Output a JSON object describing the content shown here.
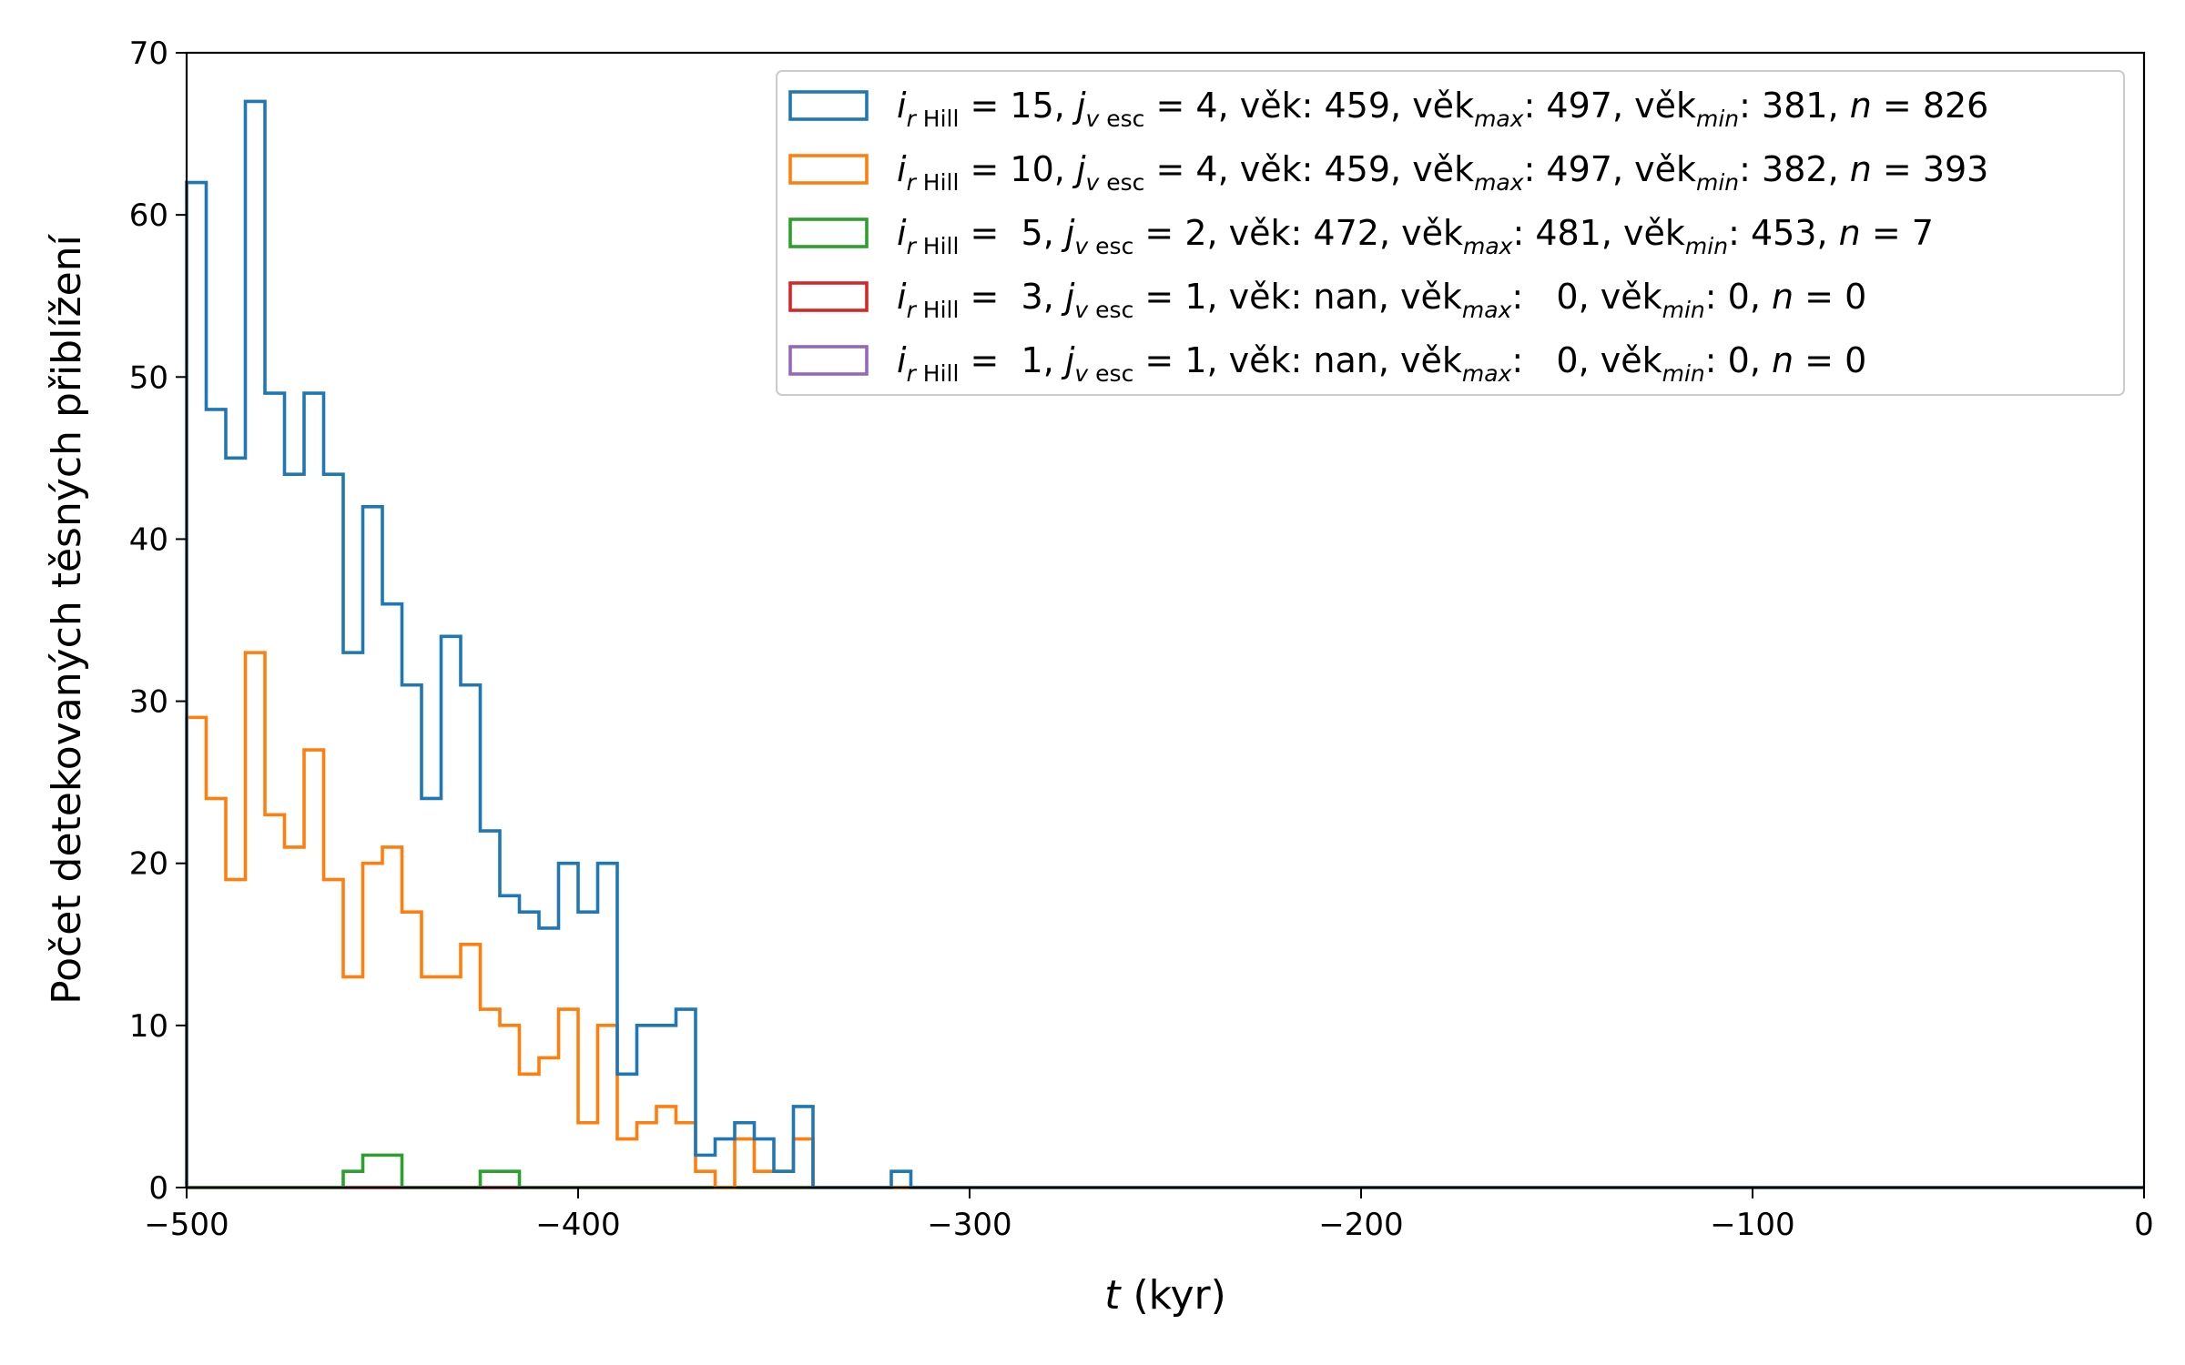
{
  "chart_data": {
    "type": "histogram",
    "xlabel_var": "t",
    "xlabel_unit": " (kyr)",
    "ylabel": "Počet detekovaných těsných přiblížení",
    "xlim": [
      -500,
      0
    ],
    "ylim": [
      0,
      70
    ],
    "xticks": [
      -500,
      -400,
      -300,
      -200,
      -100,
      0
    ],
    "xtick_labels": [
      "−500",
      "−400",
      "−300",
      "−200",
      "−100",
      "0"
    ],
    "yticks": [
      0,
      10,
      20,
      30,
      40,
      50,
      60,
      70
    ],
    "ytick_labels": [
      "0",
      "10",
      "20",
      "30",
      "40",
      "50",
      "60",
      "70"
    ],
    "bin_width": 5,
    "bin_start": -500,
    "legend_position": "upper-right",
    "series": [
      {
        "name": "15, 4, 459, 497, 381, 826",
        "color": "#1f77b4",
        "legend": {
          "i": "15",
          "j": "4",
          "age": "459",
          "age_max": "497",
          "age_min": "381",
          "n": "826"
        },
        "values": [
          62,
          48,
          45,
          67,
          49,
          44,
          49,
          44,
          33,
          42,
          36,
          31,
          24,
          34,
          31,
          22,
          18,
          17,
          16,
          20,
          17,
          20,
          7,
          10,
          10,
          11,
          2,
          3,
          4,
          3,
          1,
          5,
          0,
          0,
          0,
          0,
          1,
          0
        ]
      },
      {
        "name": "10, 4, 459, 497, 382, 393",
        "color": "#ff7f0e",
        "legend": {
          "i": "10",
          "j": "4",
          "age": "459",
          "age_max": "497",
          "age_min": "382",
          "n": "393"
        },
        "values": [
          29,
          24,
          19,
          33,
          23,
          21,
          27,
          19,
          13,
          20,
          21,
          17,
          13,
          13,
          15,
          11,
          10,
          7,
          8,
          11,
          4,
          10,
          3,
          4,
          5,
          4,
          1,
          0,
          3,
          1,
          1,
          3,
          0,
          0,
          0,
          0,
          0,
          0
        ]
      },
      {
        "name": "5, 2, 472, 481, 453, 7",
        "color": "#2ca02c",
        "legend": {
          "i": " 5",
          "j": "2",
          "age": "472",
          "age_max": "481",
          "age_min": "453",
          "n": "7"
        },
        "values": [
          0,
          0,
          0,
          0,
          0,
          0,
          0,
          0,
          1,
          2,
          2,
          0,
          0,
          0,
          0,
          1,
          1,
          0
        ]
      },
      {
        "name": "3, 1, nan, 0, 0, 0",
        "color": "#d62728",
        "legend": {
          "i": " 3",
          "j": "1",
          "age": "nan",
          "age_max": "  0",
          "age_min": "0",
          "n": "0"
        },
        "values": []
      },
      {
        "name": "1, 1, nan, 0, 0, 0",
        "color": "#9467bd",
        "legend": {
          "i": " 1",
          "j": "1",
          "age": "nan",
          "age_max": "  0",
          "age_min": "0",
          "n": "0"
        },
        "values": []
      }
    ]
  },
  "legend_text": {
    "i_sym": "i",
    "r_sub": "r",
    "hill_sub": " Hill",
    "j_sym": "j",
    "v_sub": "v",
    "esc_sub": " esc",
    "eq": " = ",
    "sep": ", ",
    "vek": "věk: ",
    "vek_word": "věk",
    "max_sub": "max",
    "min_sub": "min",
    "colon": ": ",
    "n_sym": "n"
  }
}
